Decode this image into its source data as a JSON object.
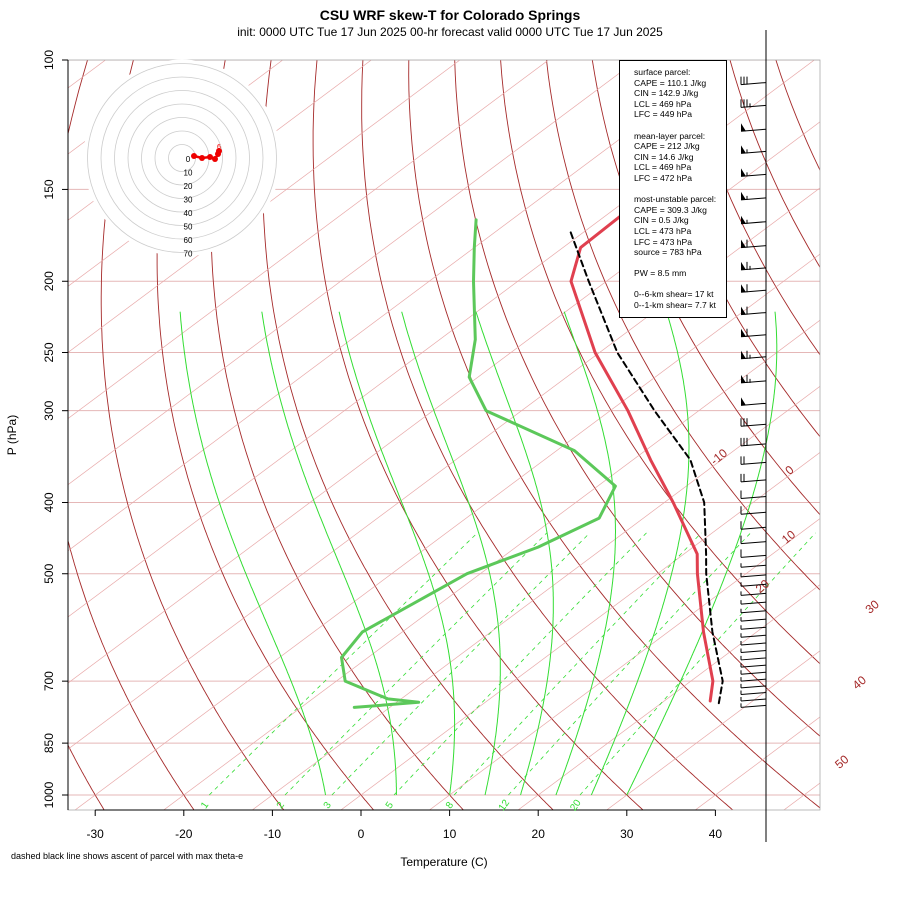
{
  "title": "CSU WRF skew-T for Colorado Springs",
  "subtitle": "init: 0000 UTC Tue 17 Jun 2025    00-hr forecast valid 0000 UTC Tue 17 Jun 2025",
  "footnote": "dashed black line shows ascent of parcel with max theta-e",
  "info": {
    "surface": [
      "surface parcel:",
      "CAPE = 110.1 J/kg",
      "CIN = 142.9 J/kg",
      "LCL = 469 hPa",
      "LFC = 449 hPa"
    ],
    "mean_layer": [
      "mean-layer parcel:",
      "CAPE = 212 J/kg",
      "CIN = 14.6 J/kg",
      "LCL = 469 hPa",
      "LFC = 472 hPa"
    ],
    "most_unstable": [
      "most-unstable parcel:",
      "CAPE = 309.3 J/kg",
      "CIN = 0.5 J/kg",
      "LCL = 473 hPa",
      "LFC = 473 hPa",
      "source = 783 hPa"
    ],
    "pw": "PW =  8.5 mm",
    "shear": [
      "0--6-km shear= 17 kt",
      "0--1-km shear= 7.7 kt"
    ]
  },
  "colors": {
    "temperature": "#e0404f",
    "dewpoint": "#5cc85a",
    "parcel": "#000000",
    "isotherm": "#a52a2a",
    "mixing_ratio": "#33dd33",
    "isobar": "#e5b7b7"
  },
  "chart_data": {
    "type": "skew-T log-P",
    "xlabel": "Temperature (C)",
    "ylabel": "P (hPa)",
    "x_ticks": [
      -30,
      -20,
      -10,
      0,
      10,
      20,
      30,
      40
    ],
    "y_ticks": [
      100,
      150,
      200,
      250,
      300,
      400,
      500,
      700,
      850,
      1000
    ],
    "isotherm_labels": [
      -10,
      0,
      10,
      20,
      30,
      40,
      50
    ],
    "dry_adiabats_C": [
      -30,
      -20,
      -10,
      0,
      10,
      20,
      30,
      40,
      50,
      60,
      70,
      80,
      90,
      100,
      110,
      120,
      130,
      140,
      150
    ],
    "moist_adiabats_C": [
      -4,
      4,
      10,
      14,
      18,
      22,
      26,
      30
    ],
    "mixing_ratio_gkg": [
      1,
      2,
      3,
      5,
      8,
      12,
      20
    ],
    "temperature_profile": [
      {
        "p": 745,
        "t": 25.2
      },
      {
        "p": 700,
        "t": 22.5
      },
      {
        "p": 600,
        "t": 14.0
      },
      {
        "p": 500,
        "t": 4.5
      },
      {
        "p": 470,
        "t": 1.5
      },
      {
        "p": 400,
        "t": -9.0
      },
      {
        "p": 350,
        "t": -18.0
      },
      {
        "p": 300,
        "t": -28.0
      },
      {
        "p": 250,
        "t": -40.5
      },
      {
        "p": 200,
        "t": -54.0
      },
      {
        "p": 180,
        "t": -58.0
      },
      {
        "p": 150,
        "t": -58.5
      },
      {
        "p": 130,
        "t": -62.0
      },
      {
        "p": 110,
        "t": -66.0
      }
    ],
    "dewpoint_profile": [
      {
        "p": 760,
        "t": -14.0
      },
      {
        "p": 748,
        "t": -7.5
      },
      {
        "p": 740,
        "t": -11.5
      },
      {
        "p": 700,
        "t": -19.0
      },
      {
        "p": 650,
        "t": -23.0
      },
      {
        "p": 600,
        "t": -24.5
      },
      {
        "p": 500,
        "t": -21.5
      },
      {
        "p": 460,
        "t": -17.5
      },
      {
        "p": 420,
        "t": -15.0
      },
      {
        "p": 380,
        "t": -18.0
      },
      {
        "p": 340,
        "t": -28.0
      },
      {
        "p": 300,
        "t": -44.0
      },
      {
        "p": 270,
        "t": -51.0
      },
      {
        "p": 240,
        "t": -56.0
      },
      {
        "p": 200,
        "t": -65.0
      },
      {
        "p": 180,
        "t": -70.0
      },
      {
        "p": 165,
        "t": -74.0
      }
    ],
    "parcel_profile": [
      {
        "p": 750,
        "t": 26.5
      },
      {
        "p": 700,
        "t": 23.6
      },
      {
        "p": 600,
        "t": 15.0
      },
      {
        "p": 500,
        "t": 5.5
      },
      {
        "p": 470,
        "t": 2.5
      },
      {
        "p": 400,
        "t": -5.5
      },
      {
        "p": 350,
        "t": -13.5
      },
      {
        "p": 300,
        "t": -25.0
      },
      {
        "p": 250,
        "t": -38.0
      },
      {
        "p": 200,
        "t": -52.0
      },
      {
        "p": 170,
        "t": -62.0
      }
    ],
    "hodograph_rings_kt": [
      10,
      20,
      30,
      40,
      50,
      60,
      70
    ],
    "wind_barbs": [
      {
        "p": 760,
        "ws": 5,
        "wd": 270
      },
      {
        "p": 745,
        "ws": 5,
        "wd": 270
      },
      {
        "p": 730,
        "ws": 5,
        "wd": 270
      },
      {
        "p": 715,
        "ws": 5,
        "wd": 270
      },
      {
        "p": 700,
        "ws": 5,
        "wd": 270
      },
      {
        "p": 685,
        "ws": 5,
        "wd": 270
      },
      {
        "p": 670,
        "ws": 5,
        "wd": 270
      },
      {
        "p": 655,
        "ws": 5,
        "wd": 270
      },
      {
        "p": 640,
        "ws": 5,
        "wd": 270
      },
      {
        "p": 625,
        "ws": 5,
        "wd": 270
      },
      {
        "p": 610,
        "ws": 5,
        "wd": 270
      },
      {
        "p": 595,
        "ws": 5,
        "wd": 270
      },
      {
        "p": 580,
        "ws": 5,
        "wd": 270
      },
      {
        "p": 565,
        "ws": 5,
        "wd": 270
      },
      {
        "p": 550,
        "ws": 5,
        "wd": 270
      },
      {
        "p": 535,
        "ws": 5,
        "wd": 270
      },
      {
        "p": 520,
        "ws": 5,
        "wd": 270
      },
      {
        "p": 505,
        "ws": 5,
        "wd": 270
      },
      {
        "p": 490,
        "ws": 5,
        "wd": 270
      },
      {
        "p": 475,
        "ws": 10,
        "wd": 270
      },
      {
        "p": 455,
        "ws": 10,
        "wd": 270
      },
      {
        "p": 435,
        "ws": 10,
        "wd": 270
      },
      {
        "p": 415,
        "ws": 10,
        "wd": 270
      },
      {
        "p": 395,
        "ws": 10,
        "wd": 270
      },
      {
        "p": 375,
        "ws": 20,
        "wd": 270
      },
      {
        "p": 355,
        "ws": 20,
        "wd": 270
      },
      {
        "p": 335,
        "ws": 30,
        "wd": 270
      },
      {
        "p": 315,
        "ws": 30,
        "wd": 270
      },
      {
        "p": 295,
        "ws": 50,
        "wd": 270
      },
      {
        "p": 275,
        "ws": 65,
        "wd": 270
      },
      {
        "p": 255,
        "ws": 65,
        "wd": 270
      },
      {
        "p": 238,
        "ws": 60,
        "wd": 270
      },
      {
        "p": 222,
        "ws": 60,
        "wd": 270
      },
      {
        "p": 207,
        "ws": 60,
        "wd": 270
      },
      {
        "p": 193,
        "ws": 65,
        "wd": 270
      },
      {
        "p": 180,
        "ws": 60,
        "wd": 270
      },
      {
        "p": 167,
        "ws": 55,
        "wd": 270
      },
      {
        "p": 155,
        "ws": 55,
        "wd": 270
      },
      {
        "p": 144,
        "ws": 55,
        "wd": 270
      },
      {
        "p": 134,
        "ws": 55,
        "wd": 270
      },
      {
        "p": 125,
        "ws": 50,
        "wd": 270
      },
      {
        "p": 116,
        "ws": 35,
        "wd": 270
      },
      {
        "p": 108,
        "ws": 30,
        "wd": 270
      }
    ]
  }
}
